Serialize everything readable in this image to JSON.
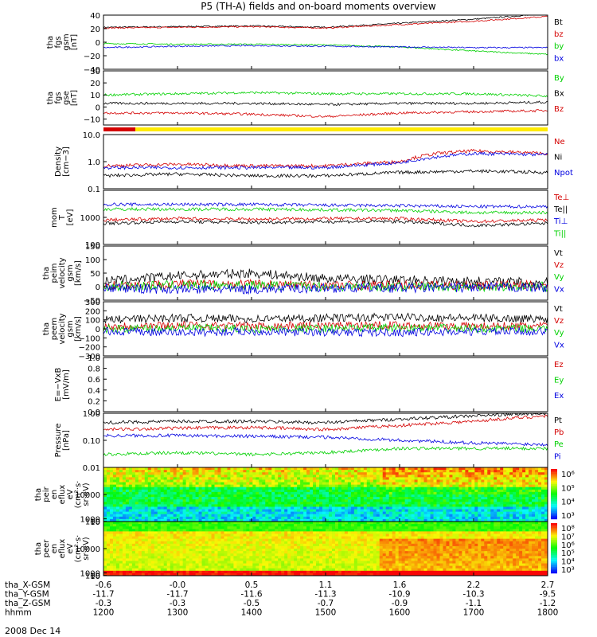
{
  "title": "P5 (TH-A) fields and on-board moments overview",
  "date_label": "2008 Dec 14",
  "colors": {
    "black": "#000000",
    "red": "#d40000",
    "green": "#00d000",
    "blue": "#0000e0",
    "yellow": "#ffea00",
    "panel_frame": "#000000"
  },
  "ephemeris": {
    "rows": [
      {
        "label": "tha_X-GSM",
        "values": [
          "-0.6",
          "-0.0",
          "0.5",
          "1.1",
          "1.6",
          "2.2",
          "2.7"
        ]
      },
      {
        "label": "tha_Y-GSM",
        "values": [
          "-11.7",
          "-11.7",
          "-11.6",
          "-11.3",
          "-10.9",
          "-10.3",
          "-9.5"
        ]
      },
      {
        "label": "tha_Z-GSM",
        "values": [
          "-0.3",
          "-0.3",
          "-0.5",
          "-0.7",
          "-0.9",
          "-1.1",
          "-1.2"
        ]
      },
      {
        "label": "hhmm",
        "values": [
          "1200",
          "1300",
          "1400",
          "1500",
          "1600",
          "1700",
          "1800"
        ]
      }
    ]
  },
  "chart_data": [
    {
      "id": "fgs_gsm",
      "type": "line",
      "ylabel": [
        "tha",
        "fgs",
        "gsm",
        "[nT]"
      ],
      "ylim": [
        -40,
        40
      ],
      "yticks": [
        "40",
        "20",
        "0",
        "−20",
        "−40"
      ],
      "yticks_v": [
        40,
        20,
        0,
        -20,
        -40
      ],
      "xlim": [
        12,
        18
      ],
      "series": [
        {
          "name": "Bt",
          "color": "#000000",
          "x": [
            12,
            13,
            14,
            15,
            16,
            17,
            18
          ],
          "values": [
            22,
            23,
            24,
            22,
            28,
            34,
            42
          ]
        },
        {
          "name": "bz",
          "color": "#d40000",
          "x": [
            12,
            13,
            14,
            15,
            16,
            17,
            18
          ],
          "values": [
            21,
            22,
            23,
            21,
            26,
            31,
            38
          ]
        },
        {
          "name": "by",
          "color": "#00d000",
          "x": [
            12,
            13,
            14,
            15,
            16,
            17,
            18
          ],
          "values": [
            -2,
            -3,
            -3,
            -4,
            -7,
            -13,
            -18
          ]
        },
        {
          "name": "bx",
          "color": "#0000e0",
          "x": [
            12,
            13,
            14,
            15,
            16,
            17,
            18
          ],
          "values": [
            -8,
            -6,
            -5,
            -6,
            -7,
            -8,
            -8
          ]
        }
      ]
    },
    {
      "id": "fgs_gse",
      "type": "line",
      "ylabel": [
        "tha",
        "fgs",
        "gse",
        "[nT]"
      ],
      "ylim": [
        -15,
        30
      ],
      "yticks": [
        "30",
        "20",
        "10",
        "0",
        "−10"
      ],
      "yticks_v": [
        30,
        20,
        10,
        0,
        -10
      ],
      "xlim": [
        12,
        18
      ],
      "series": [
        {
          "name": "By",
          "color": "#00d000",
          "x": [
            12,
            13,
            14,
            15,
            16,
            17,
            18
          ],
          "values": [
            10,
            11,
            12,
            11,
            11,
            11,
            9
          ]
        },
        {
          "name": "Bx",
          "color": "#000000",
          "x": [
            12,
            13,
            14,
            15,
            16,
            17,
            18
          ],
          "values": [
            3,
            3,
            3,
            2,
            3,
            3,
            4
          ]
        },
        {
          "name": "Bz",
          "color": "#d40000",
          "x": [
            12,
            13,
            14,
            15,
            16,
            17,
            18
          ],
          "values": [
            -5,
            -5,
            -6,
            -8,
            -5,
            -4,
            -3
          ]
        }
      ]
    },
    {
      "id": "density",
      "type": "line",
      "yscale": "log",
      "ylabel": [
        "Density",
        "[cm−3]"
      ],
      "ylim": [
        0.1,
        10
      ],
      "yticks": [
        "10.0",
        "1.0",
        "0.1"
      ],
      "yticks_v": [
        10,
        1,
        0.1
      ],
      "xlim": [
        12,
        18
      ],
      "series": [
        {
          "name": "Ne",
          "color": "#d40000",
          "x": [
            12,
            13,
            14,
            15,
            16,
            16.5,
            17,
            18
          ],
          "values": [
            0.7,
            0.8,
            0.7,
            0.7,
            1.0,
            2.0,
            2.5,
            2.0
          ]
        },
        {
          "name": "Ni",
          "color": "#000000",
          "x": [
            12,
            13,
            14,
            15,
            16,
            17,
            18
          ],
          "values": [
            0.3,
            0.35,
            0.3,
            0.3,
            0.4,
            0.45,
            0.4
          ]
        },
        {
          "name": "Npot",
          "color": "#0000e0",
          "x": [
            12,
            13,
            14,
            15,
            16,
            16.5,
            17,
            18
          ],
          "values": [
            0.6,
            0.6,
            0.6,
            0.6,
            0.9,
            1.5,
            2.0,
            1.8
          ]
        }
      ]
    },
    {
      "id": "mom_temp",
      "type": "line",
      "yscale": "log",
      "ylabel": [
        "mom",
        "T",
        "[eV]"
      ],
      "ylim": [
        100,
        10000
      ],
      "yticks": [
        "1000",
        "100"
      ],
      "yticks_v": [
        1000,
        100
      ],
      "xlim": [
        12,
        18
      ],
      "series": [
        {
          "name": "Te⊥",
          "color": "#d40000",
          "x": [
            12,
            13,
            14,
            15,
            16,
            17,
            18
          ],
          "values": [
            800,
            900,
            850,
            900,
            900,
            700,
            800
          ]
        },
        {
          "name": "Te||",
          "color": "#000000",
          "x": [
            12,
            13,
            14,
            15,
            16,
            17,
            18
          ],
          "values": [
            600,
            700,
            650,
            700,
            700,
            500,
            600
          ]
        },
        {
          "name": "Ti⊥",
          "color": "#0000e0",
          "x": [
            12,
            13,
            14,
            15,
            16,
            17,
            18
          ],
          "values": [
            3000,
            3000,
            3000,
            2800,
            2700,
            2500,
            2500
          ]
        },
        {
          "name": "Ti||",
          "color": "#00d000",
          "x": [
            12,
            13,
            14,
            15,
            16,
            17,
            18
          ],
          "values": [
            2000,
            2000,
            2000,
            1900,
            1800,
            1500,
            1500
          ]
        }
      ]
    },
    {
      "id": "peim_vel",
      "type": "line",
      "ylabel": [
        "tha",
        "peim",
        "velocity",
        "gsm",
        "[km/s]"
      ],
      "ylim": [
        -50,
        150
      ],
      "yticks": [
        "150",
        "100",
        "50",
        "0",
        "−50"
      ],
      "yticks_v": [
        150,
        100,
        50,
        0,
        -50
      ],
      "xlim": [
        12,
        18
      ],
      "series": [
        {
          "name": "Vt",
          "color": "#000000",
          "x": [
            12,
            13,
            14,
            15,
            16,
            17,
            18
          ],
          "values": [
            20,
            40,
            50,
            30,
            25,
            20,
            15
          ]
        },
        {
          "name": "Vz",
          "color": "#d40000",
          "x": [
            12,
            13,
            14,
            15,
            16,
            17,
            18
          ],
          "values": [
            5,
            10,
            10,
            5,
            5,
            5,
            5
          ]
        },
        {
          "name": "Vy",
          "color": "#00d000",
          "x": [
            12,
            13,
            14,
            15,
            16,
            17,
            18
          ],
          "values": [
            0,
            5,
            5,
            0,
            0,
            0,
            0
          ]
        },
        {
          "name": "Vx",
          "color": "#0000e0",
          "x": [
            12,
            13,
            14,
            15,
            16,
            17,
            18
          ],
          "values": [
            -5,
            -10,
            -10,
            -5,
            -5,
            -3,
            -3
          ]
        }
      ]
    },
    {
      "id": "peem_vel",
      "type": "line",
      "ylabel": [
        "tha",
        "peem",
        "velocity",
        "gsm",
        "[km/s]"
      ],
      "ylim": [
        -300,
        300
      ],
      "yticks": [
        "300",
        "200",
        "100",
        "0",
        "−100",
        "−200",
        "−300"
      ],
      "yticks_v": [
        300,
        200,
        100,
        0,
        -100,
        -200,
        -300
      ],
      "xlim": [
        12,
        18
      ],
      "series": [
        {
          "name": "Vt",
          "color": "#000000",
          "x": [
            12,
            13,
            14,
            15,
            16,
            17,
            18
          ],
          "values": [
            100,
            120,
            110,
            120,
            130,
            120,
            110
          ]
        },
        {
          "name": "Vz",
          "color": "#d40000",
          "x": [
            12,
            13,
            14,
            15,
            16,
            17,
            18
          ],
          "values": [
            30,
            40,
            30,
            40,
            40,
            30,
            30
          ]
        },
        {
          "name": "Vy",
          "color": "#00d000",
          "x": [
            12,
            13,
            14,
            15,
            16,
            17,
            18
          ],
          "values": [
            0,
            10,
            0,
            5,
            10,
            5,
            0
          ]
        },
        {
          "name": "Vx",
          "color": "#0000e0",
          "x": [
            12,
            13,
            14,
            15,
            16,
            17,
            18
          ],
          "values": [
            -30,
            -40,
            -30,
            -40,
            -40,
            -30,
            -30
          ]
        }
      ]
    },
    {
      "id": "e_field",
      "type": "line",
      "ylabel": [
        "E=−VxB",
        "[mV/m]"
      ],
      "ylim": [
        0,
        1
      ],
      "yticks": [
        "1.0",
        "0.8",
        "0.6",
        "0.4",
        "0.2",
        "0.0"
      ],
      "yticks_v": [
        1,
        0.8,
        0.6,
        0.4,
        0.2,
        0
      ],
      "xlim": [
        12,
        18
      ],
      "series": [
        {
          "name": "Ez",
          "color": "#d40000",
          "x": [],
          "values": []
        },
        {
          "name": "Ey",
          "color": "#00d000",
          "x": [],
          "values": []
        },
        {
          "name": "Ex",
          "color": "#0000e0",
          "x": [],
          "values": []
        }
      ]
    },
    {
      "id": "pressure",
      "type": "line",
      "yscale": "log",
      "ylabel": [
        "Pressure",
        "[nPa]"
      ],
      "ylim": [
        0.01,
        1
      ],
      "yticks": [
        "1.00",
        "0.10",
        "0.01"
      ],
      "yticks_v": [
        1,
        0.1,
        0.01
      ],
      "xlim": [
        12,
        18
      ],
      "series": [
        {
          "name": "Pt",
          "color": "#000000",
          "x": [
            12,
            13,
            14,
            15,
            16,
            17,
            18
          ],
          "values": [
            0.45,
            0.5,
            0.5,
            0.45,
            0.6,
            0.8,
            1.0
          ]
        },
        {
          "name": "Pb",
          "color": "#d40000",
          "x": [
            12,
            13,
            14,
            15,
            16,
            17,
            18
          ],
          "values": [
            0.25,
            0.28,
            0.3,
            0.25,
            0.35,
            0.5,
            0.8
          ]
        },
        {
          "name": "Pe",
          "color": "#00d000",
          "x": [
            12,
            13,
            14,
            15,
            16,
            17,
            18
          ],
          "values": [
            0.03,
            0.035,
            0.03,
            0.035,
            0.05,
            0.05,
            0.05
          ]
        },
        {
          "name": "Pi",
          "color": "#0000e0",
          "x": [
            12,
            13,
            14,
            15,
            16,
            17,
            18
          ],
          "values": [
            0.15,
            0.15,
            0.14,
            0.13,
            0.1,
            0.08,
            0.07
          ]
        }
      ]
    },
    {
      "id": "peir_spec",
      "type": "heatmap",
      "ylabel": [
        "tha",
        "peir",
        "en",
        "eflux",
        "eV",
        "(cm²·s·",
        "sr·eV)"
      ],
      "ylim": [
        10,
        20000
      ],
      "yticks": [
        "10000",
        "1000",
        "100",
        "10"
      ],
      "yticks_v": [
        10000,
        1000,
        100,
        10
      ],
      "colorbar_labels": [
        "10⁶",
        "10⁵",
        "10⁴",
        "10³"
      ],
      "xlim": [
        12,
        18
      ]
    },
    {
      "id": "peer_spec",
      "type": "heatmap",
      "ylabel": [
        "tha",
        "peer",
        "en",
        "eflux",
        "eV",
        "(cm²·s·",
        "sr·eV)"
      ],
      "ylim": [
        7,
        20000
      ],
      "yticks": [
        "10000",
        "1000",
        "100",
        "10"
      ],
      "yticks_v": [
        10000,
        1000,
        100,
        10
      ],
      "colorbar_labels": [
        "10⁸",
        "10⁷",
        "10⁶",
        "10⁵",
        "10⁴",
        "10³"
      ],
      "xlim": [
        12,
        18
      ]
    }
  ]
}
